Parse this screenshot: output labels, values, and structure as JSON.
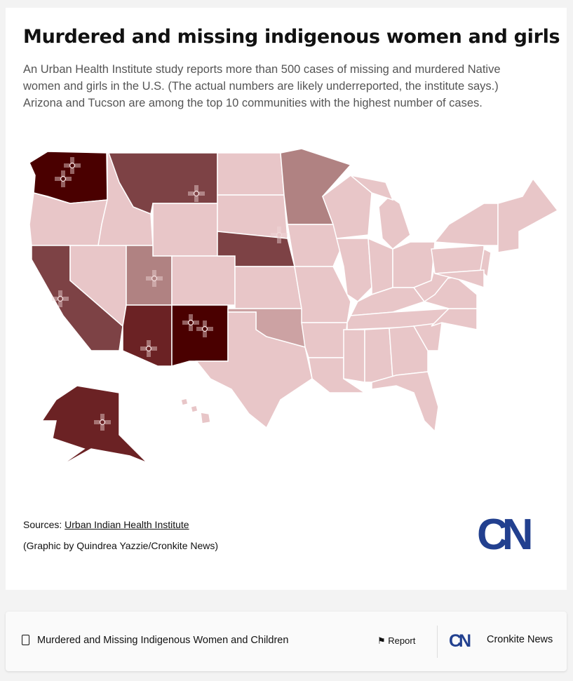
{
  "title": "Murdered and missing indigenous women and girls",
  "subtitle": "An Urban Health Institute study reports more than 500 cases of missing and murdered Native women and girls in the U.S. (The actual numbers are likely underreported, the institute says.) Arizona and Tucson are among the top 10 communities with the highest number of cases.",
  "map": {
    "colors": {
      "darkest": "#4a0000",
      "dark": "#6b2224",
      "medium_dark": "#7d4245",
      "medium": "#b08282",
      "light_medium": "#cca2a3",
      "light": "#e8c6c8",
      "border": "#ffffff",
      "symbol": "#f0d8d8"
    },
    "states": {
      "WA": "darkest",
      "NM": "darkest",
      "AK": "dark",
      "AZ": "dark",
      "MT": "medium_dark",
      "NE": "medium_dark",
      "CA": "medium_dark",
      "MN": "medium",
      "UT": "medium",
      "OK": "light_medium"
    },
    "symbol_icon": "zia-sun-symbol",
    "symbols": [
      "WA",
      "WA",
      "MT",
      "NE",
      "UT",
      "CA",
      "NM",
      "NM",
      "AZ",
      "AK"
    ]
  },
  "sources_label": "Sources: ",
  "sources_link": "Urban Indian Health Institute",
  "credit": "(Graphic by Quindrea Yazzie/Cronkite News)",
  "logo": "CN",
  "footer": {
    "title": "Murdered and Missing Indigenous Women and Children",
    "report": "Report",
    "publisher": "Cronkite News",
    "logo": "CN",
    "doc_icon": "document-icon",
    "flag_icon": "flag-icon"
  }
}
